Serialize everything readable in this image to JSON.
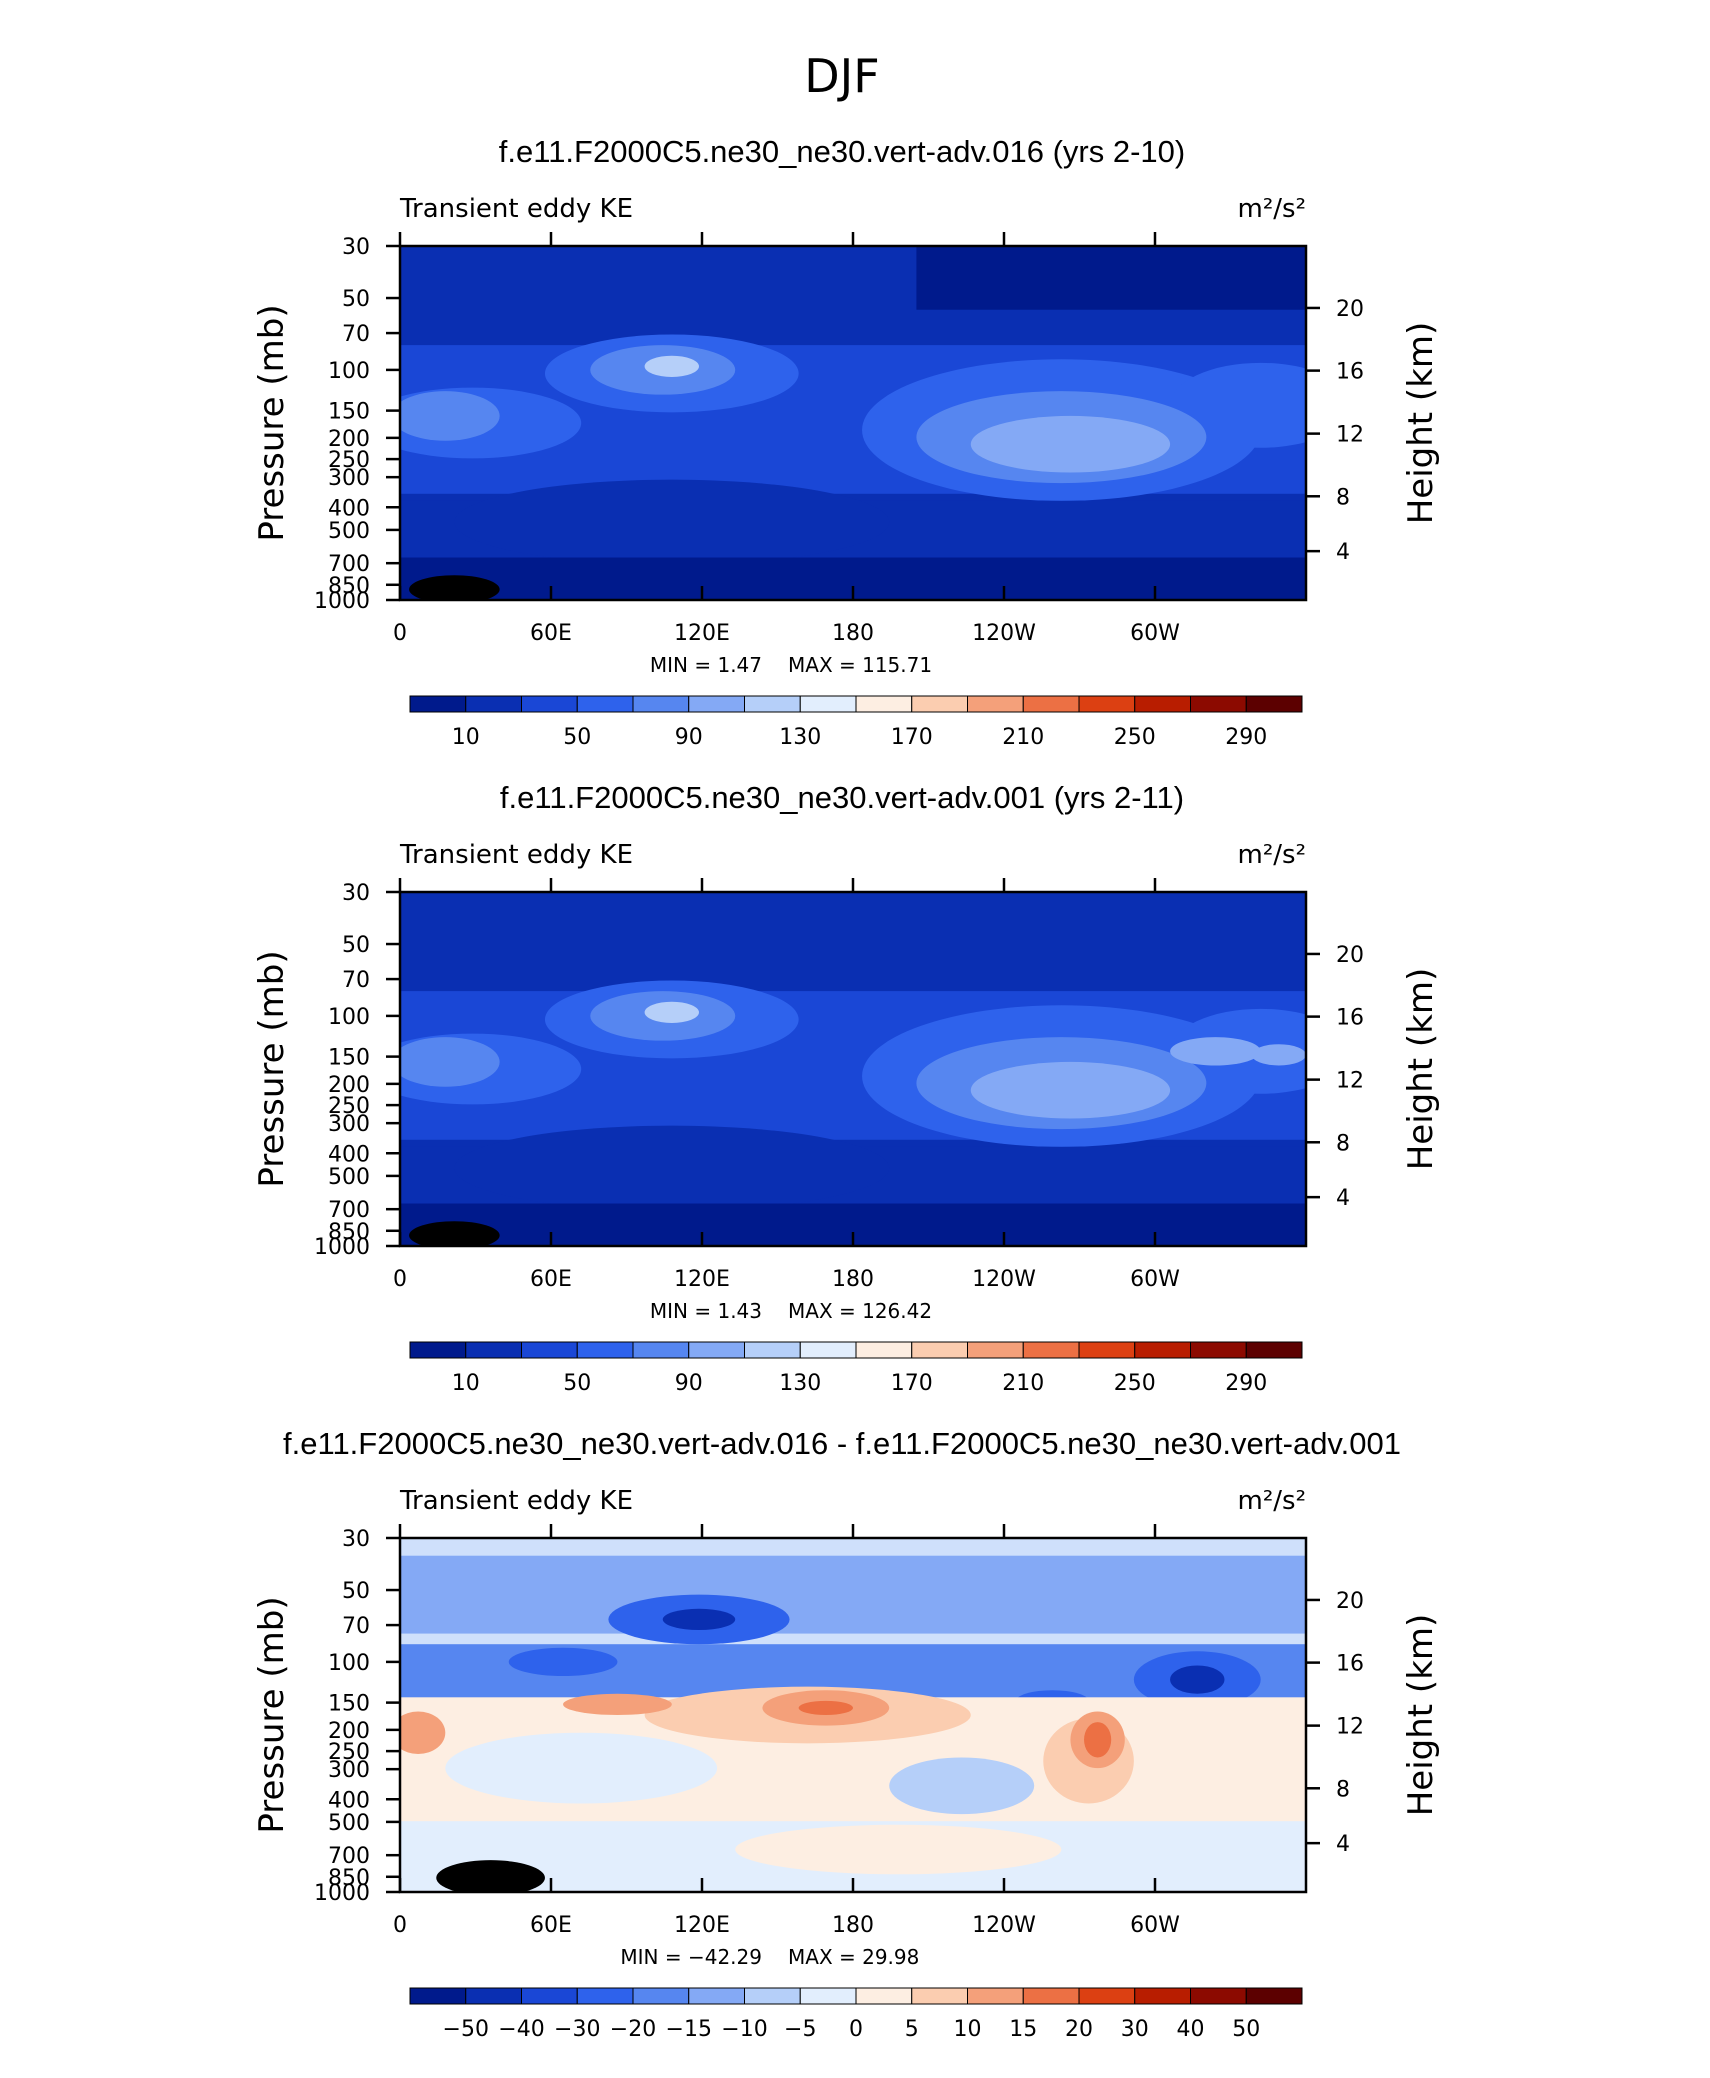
{
  "header": {
    "title": "DJF"
  },
  "chart_data": [
    {
      "type": "heatmap",
      "title": "f.e11.F2000C5.ne30_ne30.vert-adv.016 (yrs 2-10)",
      "left_label": "Transient eddy KE",
      "units_label": "m²/s²",
      "ylabel": "Pressure (mb)",
      "y2label": "Height (km)",
      "x_ticks": [
        "0",
        "60E",
        "120E",
        "180",
        "120W",
        "60W"
      ],
      "y_ticks": [
        "30",
        "50",
        "70",
        "100",
        "150",
        "200",
        "250",
        "300",
        "400",
        "500",
        "700",
        "850",
        "1000"
      ],
      "y2_ticks": [
        "20",
        "16",
        "12",
        "8",
        "4"
      ],
      "min_text": "MIN =    1.47",
      "max_text": "MAX = 115.71",
      "colorbar_labels": [
        "10",
        "50",
        "90",
        "130",
        "170",
        "210",
        "250",
        "290"
      ],
      "colorbar_colors": [
        "#001a8c",
        "#0a2fb2",
        "#1a47d6",
        "#2e62ec",
        "#5686f0",
        "#84a9f5",
        "#b5cff9",
        "#e2eefd",
        "#fdeee2",
        "#fbcdb0",
        "#f4a07a",
        "#ec7044",
        "#dc4012",
        "#b81d00",
        "#8c0a00",
        "#5c0000"
      ]
    },
    {
      "type": "heatmap",
      "title": "f.e11.F2000C5.ne30_ne30.vert-adv.001 (yrs 2-11)",
      "left_label": "Transient eddy KE",
      "units_label": "m²/s²",
      "ylabel": "Pressure (mb)",
      "y2label": "Height (km)",
      "x_ticks": [
        "0",
        "60E",
        "120E",
        "180",
        "120W",
        "60W"
      ],
      "y_ticks": [
        "30",
        "50",
        "70",
        "100",
        "150",
        "200",
        "250",
        "300",
        "400",
        "500",
        "700",
        "850",
        "1000"
      ],
      "y2_ticks": [
        "20",
        "16",
        "12",
        "8",
        "4"
      ],
      "min_text": "MIN =    1.43",
      "max_text": "MAX = 126.42",
      "colorbar_labels": [
        "10",
        "50",
        "90",
        "130",
        "170",
        "210",
        "250",
        "290"
      ],
      "colorbar_colors": [
        "#001a8c",
        "#0a2fb2",
        "#1a47d6",
        "#2e62ec",
        "#5686f0",
        "#84a9f5",
        "#b5cff9",
        "#e2eefd",
        "#fdeee2",
        "#fbcdb0",
        "#f4a07a",
        "#ec7044",
        "#dc4012",
        "#b81d00",
        "#8c0a00",
        "#5c0000"
      ]
    },
    {
      "type": "heatmap",
      "title": "f.e11.F2000C5.ne30_ne30.vert-adv.016 - f.e11.F2000C5.ne30_ne30.vert-adv.001",
      "left_label": "Transient eddy KE",
      "units_label": "m²/s²",
      "ylabel": "Pressure (mb)",
      "y2label": "Height (km)",
      "x_ticks": [
        "0",
        "60E",
        "120E",
        "180",
        "120W",
        "60W"
      ],
      "y_ticks": [
        "30",
        "50",
        "70",
        "100",
        "150",
        "200",
        "250",
        "300",
        "400",
        "500",
        "700",
        "850",
        "1000"
      ],
      "y2_ticks": [
        "20",
        "16",
        "12",
        "8",
        "4"
      ],
      "min_text": "MIN = −42.29",
      "max_text": "MAX =   29.98",
      "colorbar_labels": [
        "−50",
        "−40",
        "−30",
        "−20",
        "−15",
        "−10",
        "−5",
        "0",
        "5",
        "10",
        "15",
        "20",
        "30",
        "40",
        "50"
      ],
      "colorbar_colors": [
        "#001a8c",
        "#0a2fb2",
        "#1a47d6",
        "#2e62ec",
        "#5686f0",
        "#84a9f5",
        "#b5cff9",
        "#e2eefd",
        "#fdeee2",
        "#fbcdb0",
        "#f4a07a",
        "#ec7044",
        "#dc4012",
        "#b81d00",
        "#8c0a00",
        "#5c0000"
      ]
    }
  ]
}
